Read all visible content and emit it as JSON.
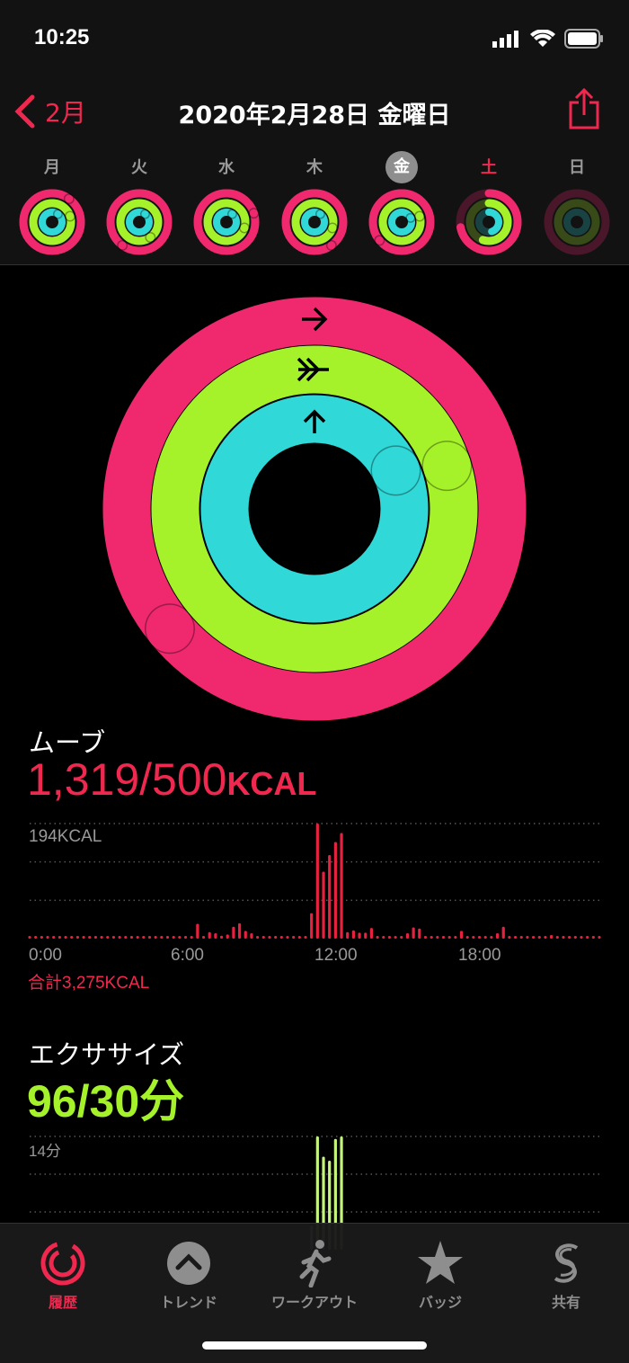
{
  "status": {
    "time": "10:25"
  },
  "nav": {
    "back_label": "2月",
    "title": "2020年2月28日 金曜日"
  },
  "week": [
    {
      "label": "月",
      "move": 1.1,
      "exercise": 1.2,
      "stand": 1.1,
      "selected": false
    },
    {
      "label": "火",
      "move": 1.6,
      "exercise": 1.4,
      "stand": 1.1,
      "selected": false
    },
    {
      "label": "水",
      "move": 1.2,
      "exercise": 1.3,
      "stand": 1.1,
      "selected": false
    },
    {
      "label": "木",
      "move": 1.4,
      "exercise": 1.3,
      "stand": 1.1,
      "selected": false
    },
    {
      "label": "金",
      "move": 2.64,
      "exercise": 3.2,
      "stand": 1.18,
      "selected": true
    },
    {
      "label": "土",
      "move": 0.72,
      "exercise": 0.55,
      "stand": 0.45,
      "selected": false
    },
    {
      "label": "日",
      "move": 0,
      "exercise": 0,
      "stand": 0,
      "selected": false
    }
  ],
  "colors": {
    "move": "#f0286e",
    "exercise": "#a6f22a",
    "stand": "#30d8d8",
    "accent": "#f0284f"
  },
  "rings": {
    "move": 2.64,
    "exercise": 3.2,
    "stand": 1.18
  },
  "move": {
    "label": "ムーブ",
    "value": "1,319/500",
    "unit": "KCAL",
    "total": "合計3,275KCAL"
  },
  "exercise": {
    "label": "エクササイズ",
    "value": "96/30分"
  },
  "chart_data": [
    {
      "type": "bar",
      "ymax_label": "194KCAL",
      "ylim": [
        0,
        194
      ],
      "xticks": [
        "0:00",
        "6:00",
        "12:00",
        "18:00"
      ],
      "interval_minutes": 15,
      "values": [
        2,
        2,
        2,
        2,
        2,
        2,
        2,
        2,
        2,
        2,
        2,
        2,
        2,
        2,
        2,
        2,
        2,
        2,
        2,
        2,
        2,
        2,
        2,
        2,
        2,
        2,
        2,
        2,
        25,
        2,
        11,
        9,
        5,
        7,
        20,
        26,
        13,
        9,
        2,
        2,
        2,
        2,
        2,
        2,
        2,
        2,
        2,
        43,
        194,
        113,
        141,
        163,
        178,
        11,
        14,
        10,
        10,
        18,
        2,
        2,
        2,
        2,
        2,
        9,
        19,
        17,
        2,
        2,
        2,
        2,
        2,
        2,
        13,
        2,
        2,
        2,
        2,
        2,
        9,
        20,
        2,
        2,
        2,
        2,
        2,
        2,
        2,
        6,
        2,
        2,
        2,
        2,
        2,
        2,
        2,
        2
      ]
    },
    {
      "type": "bar",
      "ymax_label": "14分",
      "ylim": [
        0,
        14
      ],
      "interval_minutes": 15,
      "values": [
        0,
        0,
        0,
        0,
        0,
        0,
        0,
        0,
        0,
        0,
        0,
        0,
        0,
        0,
        0,
        0,
        0,
        0,
        0,
        0,
        0,
        0,
        0,
        0,
        0,
        0,
        0,
        0,
        0.5,
        0,
        0,
        0,
        0,
        0,
        0,
        0,
        0,
        0,
        0,
        0,
        0,
        0,
        0,
        0,
        0,
        0,
        0,
        3,
        14,
        11.5,
        11,
        13.7,
        14,
        0,
        0,
        0,
        0,
        0,
        0,
        0,
        0,
        0,
        0,
        0,
        0,
        0,
        0,
        0,
        0,
        0,
        0,
        0,
        0,
        0,
        0,
        0,
        0,
        0,
        0,
        0,
        0,
        0,
        0,
        0,
        0,
        0,
        0,
        0,
        0,
        0,
        0,
        0,
        0,
        0,
        0,
        0
      ]
    }
  ],
  "tabs": [
    {
      "label": "履歴",
      "icon": "history-rings-icon",
      "active": true
    },
    {
      "label": "トレンド",
      "icon": "trend-chevron-icon"
    },
    {
      "label": "ワークアウト",
      "icon": "running-figure-icon"
    },
    {
      "label": "バッジ",
      "icon": "star-badge-icon"
    },
    {
      "label": "共有",
      "icon": "share-rings-icon"
    }
  ]
}
